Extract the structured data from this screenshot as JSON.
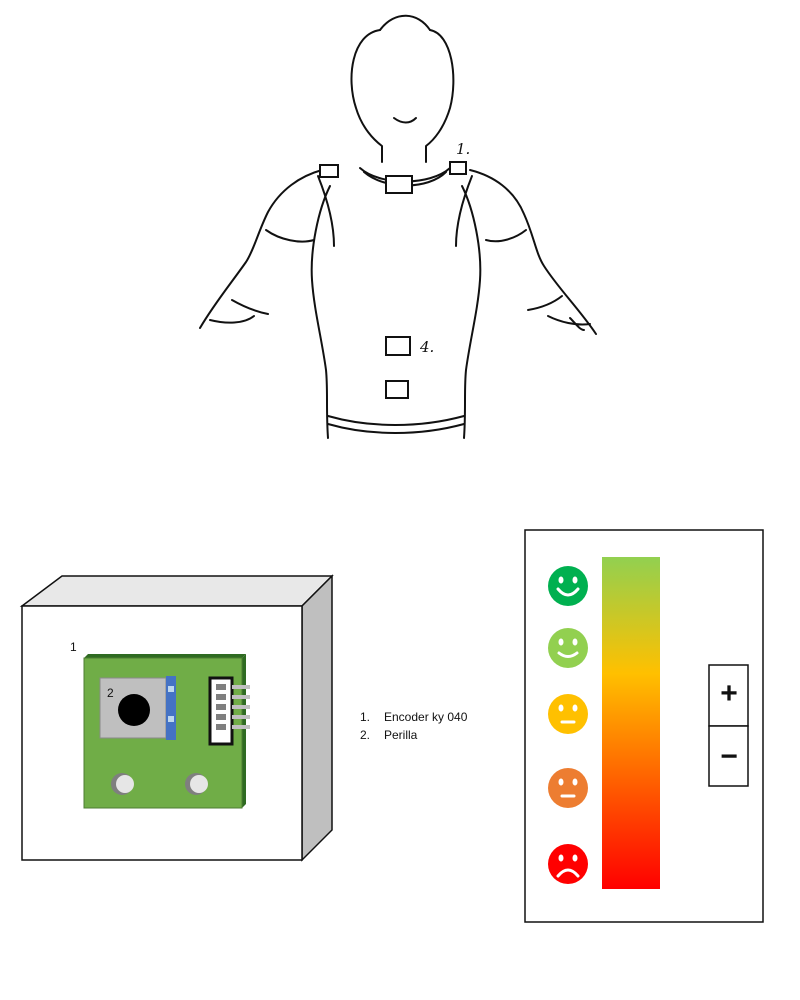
{
  "shirt": {
    "label_1": "1.",
    "label_4": "4."
  },
  "box": {
    "label_1": "1",
    "label_2": "2"
  },
  "legend": {
    "items": [
      {
        "num": "1.",
        "text": "Encoder ky 040"
      },
      {
        "num": "2.",
        "text": "Perilla"
      }
    ]
  },
  "scale": {
    "gradient_colors": [
      "#92d050",
      "#ffc000",
      "#ff0000"
    ],
    "faces": [
      {
        "mood": "very-happy",
        "color": "#00b050"
      },
      {
        "mood": "happy",
        "color": "#92d050"
      },
      {
        "mood": "neutral",
        "color": "#ffc000"
      },
      {
        "mood": "unhappy",
        "color": "#ed7d31"
      },
      {
        "mood": "very-unhappy",
        "color": "#ff0000"
      }
    ],
    "plus_label": "+",
    "minus_label": "−"
  }
}
